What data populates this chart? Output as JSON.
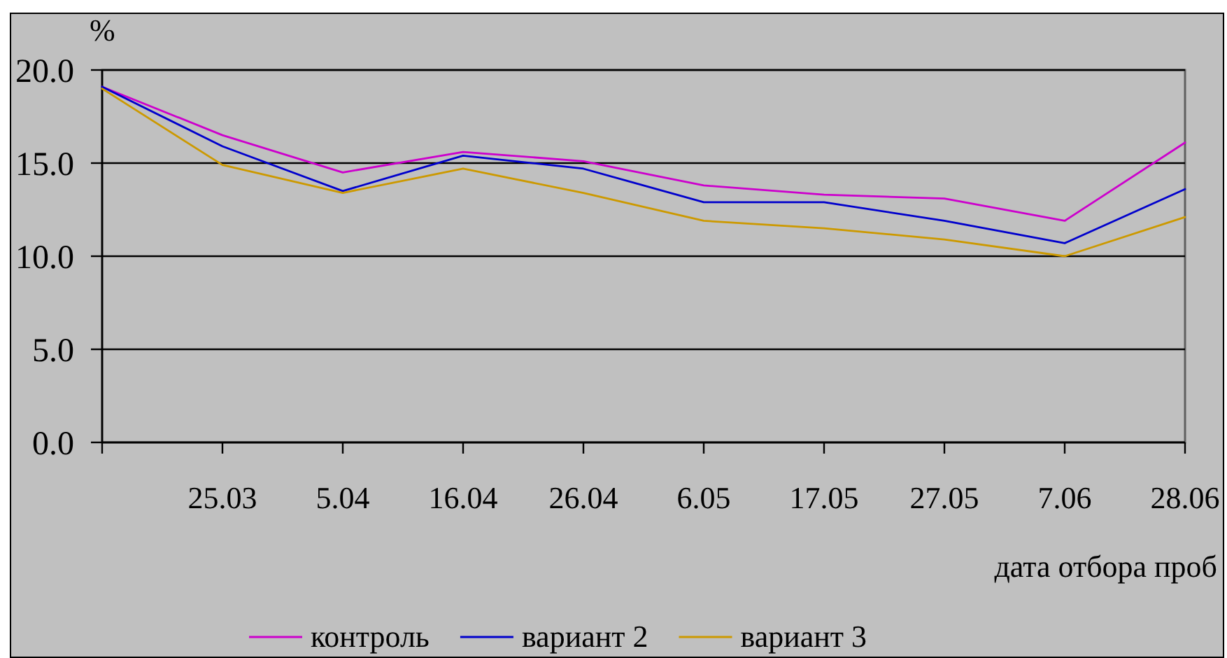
{
  "chart_data": {
    "type": "line",
    "ylabel": "%",
    "xlabel": "дата отбора проб",
    "categories": [
      null,
      "25.03",
      "5.04",
      "16.04",
      "26.04",
      "6.05",
      "17.05",
      "27.05",
      "7.06",
      "28.06"
    ],
    "series": [
      {
        "name": "контроль",
        "color": "#cc00cc",
        "values": [
          19.1,
          16.5,
          14.5,
          15.6,
          15.1,
          13.8,
          13.3,
          13.1,
          11.9,
          16.1
        ]
      },
      {
        "name": "вариант 2",
        "color": "#0000cc",
        "values": [
          19.1,
          15.9,
          13.5,
          15.4,
          14.7,
          12.9,
          12.9,
          11.9,
          10.7,
          13.6
        ]
      },
      {
        "name": "вариант 3",
        "color": "#cc9900",
        "values": [
          19.0,
          14.9,
          13.4,
          14.7,
          13.4,
          11.9,
          11.5,
          10.9,
          10.0,
          12.1
        ]
      }
    ],
    "ylim": [
      0,
      20
    ],
    "yticks": [
      {
        "value": 0,
        "label": "0.0"
      },
      {
        "value": 5,
        "label": "5.0"
      },
      {
        "value": 10,
        "label": "10.0"
      },
      {
        "value": 15,
        "label": "15.0"
      },
      {
        "value": 20,
        "label": "20.0"
      }
    ],
    "grid": "y",
    "legend": "bottom"
  }
}
